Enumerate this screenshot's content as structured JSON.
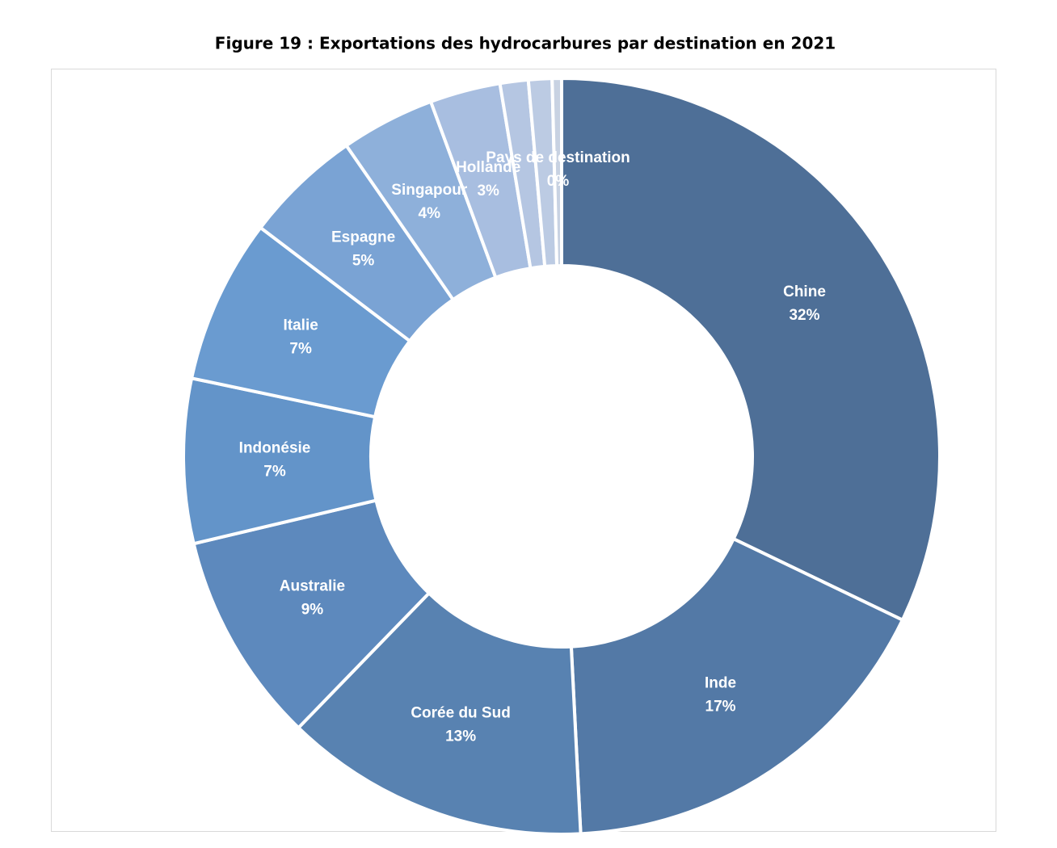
{
  "chart_data": {
    "type": "donut",
    "title": "Figure 19 : Exportations des hydrocarbures par destination en 2021",
    "categories": [
      "Chine",
      "Inde",
      "Corée du Sud",
      "Australie",
      "Indonésie",
      "Italie",
      "Espagne",
      "Singapour",
      "Hollande",
      null,
      null,
      "Pays de destination"
    ],
    "values": [
      32,
      17,
      13,
      9,
      7,
      7,
      5,
      4,
      3,
      1.2,
      1,
      0.4
    ],
    "value_labels": [
      "32%",
      "17%",
      "13%",
      "9%",
      "7%",
      "7%",
      "5%",
      "4%",
      "3%",
      null,
      null,
      "0%"
    ],
    "colors": [
      "#4e6f97",
      "#5379a6",
      "#5882b1",
      "#5d89bd",
      "#6394c9",
      "#6a9bd0",
      "#7aa3d4",
      "#8eb0da",
      "#a8bee0",
      "#b5c6e2",
      "#bccbe3",
      "#c8d2e2"
    ]
  }
}
